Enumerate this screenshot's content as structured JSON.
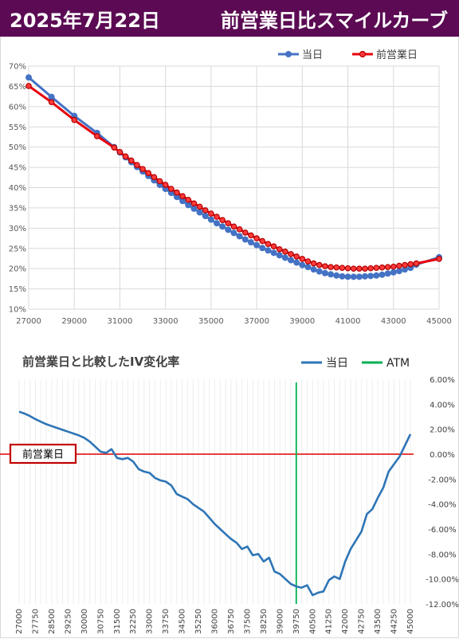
{
  "header": {
    "date": "2025年7月22日",
    "title": "前営業日比スマイルカーブ"
  },
  "chart_data": [
    {
      "type": "line",
      "title": "",
      "legend": [
        "当日",
        "前営業日"
      ],
      "legend_placement": "top-right",
      "xlim": [
        27000,
        45000
      ],
      "ylim": [
        0.1,
        0.7
      ],
      "x_ticks": [
        "27000",
        "29000",
        "31000",
        "33000",
        "35000",
        "37000",
        "39000",
        "41000",
        "43000",
        "45000"
      ],
      "y_ticks": [
        "10%",
        "15%",
        "20%",
        "25%",
        "30%",
        "35%",
        "40%",
        "45%",
        "50%",
        "55%",
        "60%",
        "65%",
        "70%"
      ],
      "grid": true,
      "series": [
        {
          "name": "当日",
          "color": "#4472c4",
          "points": [
            [
              27000,
              0.672
            ],
            [
              28000,
              0.624
            ],
            [
              29000,
              0.577
            ],
            [
              30000,
              0.535
            ],
            [
              30750,
              0.5
            ],
            [
              31000,
              0.487
            ],
            [
              31250,
              0.475
            ],
            [
              31500,
              0.463
            ],
            [
              31750,
              0.451
            ],
            [
              32000,
              0.44
            ],
            [
              32250,
              0.429
            ],
            [
              32500,
              0.418
            ],
            [
              32750,
              0.407
            ],
            [
              33000,
              0.397
            ],
            [
              33250,
              0.387
            ],
            [
              33500,
              0.377
            ],
            [
              33750,
              0.367
            ],
            [
              34000,
              0.357
            ],
            [
              34250,
              0.348
            ],
            [
              34500,
              0.339
            ],
            [
              34750,
              0.33
            ],
            [
              35000,
              0.321
            ],
            [
              35250,
              0.312
            ],
            [
              35500,
              0.304
            ],
            [
              35750,
              0.296
            ],
            [
              36000,
              0.288
            ],
            [
              36250,
              0.28
            ],
            [
              36500,
              0.272
            ],
            [
              36750,
              0.265
            ],
            [
              37000,
              0.258
            ],
            [
              37250,
              0.251
            ],
            [
              37500,
              0.245
            ],
            [
              37750,
              0.239
            ],
            [
              38000,
              0.233
            ],
            [
              38250,
              0.227
            ],
            [
              38500,
              0.221
            ],
            [
              38750,
              0.215
            ],
            [
              39000,
              0.209
            ],
            [
              39250,
              0.204
            ],
            [
              39500,
              0.198
            ],
            [
              39750,
              0.193
            ],
            [
              40000,
              0.189
            ],
            [
              40250,
              0.186
            ],
            [
              40500,
              0.183
            ],
            [
              40750,
              0.181
            ],
            [
              41000,
              0.18
            ],
            [
              41250,
              0.18
            ],
            [
              41500,
              0.18
            ],
            [
              41750,
              0.181
            ],
            [
              42000,
              0.182
            ],
            [
              42250,
              0.183
            ],
            [
              42500,
              0.185
            ],
            [
              42750,
              0.188
            ],
            [
              43000,
              0.191
            ],
            [
              43250,
              0.194
            ],
            [
              43500,
              0.198
            ],
            [
              43750,
              0.202
            ],
            [
              44000,
              0.21
            ],
            [
              45000,
              0.228
            ]
          ]
        },
        {
          "name": "前営業日",
          "color": "#e8000b",
          "points": [
            [
              27000,
              0.651
            ],
            [
              28000,
              0.611
            ],
            [
              29000,
              0.567
            ],
            [
              30000,
              0.527
            ],
            [
              30750,
              0.499
            ],
            [
              31000,
              0.488
            ],
            [
              31250,
              0.477
            ],
            [
              31500,
              0.467
            ],
            [
              31750,
              0.456
            ],
            [
              32000,
              0.446
            ],
            [
              32250,
              0.436
            ],
            [
              32500,
              0.426
            ],
            [
              32750,
              0.416
            ],
            [
              33000,
              0.407
            ],
            [
              33250,
              0.397
            ],
            [
              33500,
              0.388
            ],
            [
              33750,
              0.379
            ],
            [
              34000,
              0.37
            ],
            [
              34250,
              0.361
            ],
            [
              34500,
              0.353
            ],
            [
              34750,
              0.344
            ],
            [
              35000,
              0.336
            ],
            [
              35250,
              0.328
            ],
            [
              35500,
              0.32
            ],
            [
              35750,
              0.312
            ],
            [
              36000,
              0.304
            ],
            [
              36250,
              0.297
            ],
            [
              36500,
              0.289
            ],
            [
              36750,
              0.282
            ],
            [
              37000,
              0.275
            ],
            [
              37250,
              0.268
            ],
            [
              37500,
              0.261
            ],
            [
              37750,
              0.255
            ],
            [
              38000,
              0.248
            ],
            [
              38250,
              0.242
            ],
            [
              38500,
              0.236
            ],
            [
              38750,
              0.23
            ],
            [
              39000,
              0.224
            ],
            [
              39250,
              0.218
            ],
            [
              39500,
              0.213
            ],
            [
              39750,
              0.209
            ],
            [
              40000,
              0.206
            ],
            [
              40250,
              0.204
            ],
            [
              40500,
              0.203
            ],
            [
              40750,
              0.202
            ],
            [
              41000,
              0.201
            ],
            [
              41250,
              0.2
            ],
            [
              41500,
              0.2
            ],
            [
              41750,
              0.2
            ],
            [
              42000,
              0.201
            ],
            [
              42250,
              0.202
            ],
            [
              42500,
              0.203
            ],
            [
              42750,
              0.204
            ],
            [
              43000,
              0.205
            ],
            [
              43250,
              0.207
            ],
            [
              43500,
              0.209
            ],
            [
              43750,
              0.211
            ],
            [
              44000,
              0.213
            ],
            [
              45000,
              0.224
            ]
          ]
        }
      ]
    },
    {
      "type": "line",
      "title": "前営業日と比較したIV変化率",
      "legend": [
        "当日",
        "ATM"
      ],
      "legend_placement": "top-right",
      "baseline_label": "前営業日",
      "atm_strike": 39750,
      "ylim": [
        -0.12,
        0.06
      ],
      "y_ticks": [
        "6.00%",
        "4.00%",
        "2.00%",
        "0.00%",
        "-2.00%",
        "-4.00%",
        "-6.00%",
        "-8.00%",
        "-10.00%",
        "-12.00%"
      ],
      "x_ticks": [
        "27000",
        "27750",
        "28500",
        "29250",
        "30000",
        "30750",
        "31500",
        "32250",
        "33000",
        "33750",
        "34500",
        "35250",
        "36000",
        "36750",
        "37500",
        "38250",
        "39000",
        "39750",
        "40500",
        "41250",
        "42000",
        "42750",
        "43500",
        "44250",
        "45000"
      ],
      "series": [
        {
          "name": "当日",
          "color": "#2e75b6",
          "x": [
            27000,
            27250,
            27500,
            27750,
            28000,
            28250,
            28500,
            28750,
            29000,
            29250,
            29500,
            29750,
            30000,
            30250,
            30500,
            30750,
            31000,
            31250,
            31500,
            31750,
            32000,
            32250,
            32500,
            32750,
            33000,
            33250,
            33500,
            33750,
            34000,
            34250,
            34500,
            34750,
            35000,
            35250,
            35500,
            35750,
            36000,
            36250,
            36500,
            36750,
            37000,
            37250,
            37500,
            37750,
            38000,
            38250,
            38500,
            38750,
            39000,
            39250,
            39500,
            39750,
            40000,
            40250,
            40500,
            40750,
            41000,
            41250,
            41500,
            41750,
            42000,
            42250,
            42500,
            42750,
            43000,
            43250,
            43500,
            43750,
            44000,
            44250,
            44500,
            44750,
            45000
          ],
          "values": [
            0.034,
            0.0325,
            0.0305,
            0.028,
            0.026,
            0.024,
            0.0225,
            0.021,
            0.0195,
            0.018,
            0.0165,
            0.015,
            0.013,
            0.01,
            0.006,
            0.002,
            0.001,
            0.004,
            -0.003,
            -0.004,
            -0.003,
            -0.006,
            -0.012,
            -0.014,
            -0.015,
            -0.019,
            -0.021,
            -0.022,
            -0.025,
            -0.032,
            -0.034,
            -0.036,
            -0.04,
            -0.043,
            -0.046,
            -0.051,
            -0.056,
            -0.06,
            -0.064,
            -0.068,
            -0.071,
            -0.076,
            -0.074,
            -0.081,
            -0.08,
            -0.086,
            -0.083,
            -0.094,
            -0.096,
            -0.1,
            -0.104,
            -0.106,
            -0.107,
            -0.105,
            -0.113,
            -0.111,
            -0.11,
            -0.101,
            -0.098,
            -0.1,
            -0.086,
            -0.076,
            -0.069,
            -0.062,
            -0.048,
            -0.044,
            -0.035,
            -0.027,
            -0.014,
            -0.008,
            -0.002,
            0.007,
            0.016
          ]
        }
      ]
    }
  ]
}
